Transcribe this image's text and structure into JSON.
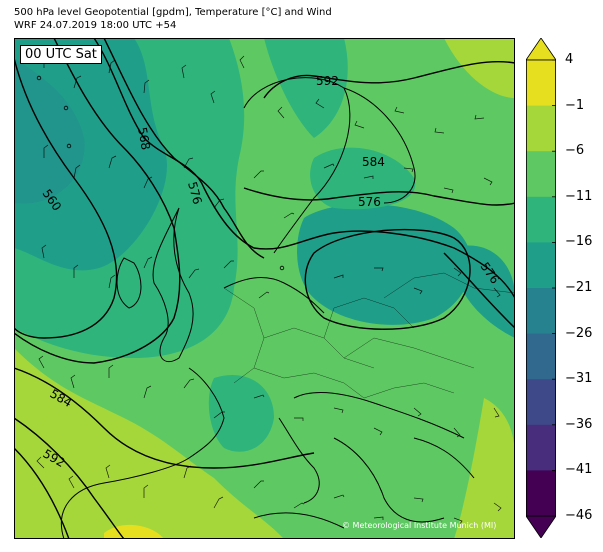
{
  "title": {
    "line1": "500 hPa level Geopotential [gpdm], Temperature [°C] and Wind",
    "line2": "WRF 24.07.2019 18:00 UTC +54"
  },
  "time_label": "00 UTC Sat",
  "credit": "© Meteorological Institute Munich (MI)",
  "colorbar": {
    "ticks": [
      "4",
      "−1",
      "−6",
      "−11",
      "−16",
      "−21",
      "−26",
      "−31",
      "−36",
      "−41",
      "−46"
    ],
    "values": [
      4,
      -1,
      -6,
      -11,
      -16,
      -21,
      -26,
      -31,
      -36,
      -41,
      -46
    ],
    "colors": [
      "#e5df1f",
      "#a5d73a",
      "#5ec962",
      "#2fb47c",
      "#1f9e89",
      "#26828e",
      "#31688e",
      "#3e4989",
      "#472d7b",
      "#440154"
    ]
  },
  "contour_labels": {
    "c592a": "592",
    "c584a": "584",
    "c576a": "576",
    "c576b": "576",
    "c576c": "576",
    "c568": "568",
    "c560": "560",
    "c584b": "584",
    "c592b": "592"
  }
}
